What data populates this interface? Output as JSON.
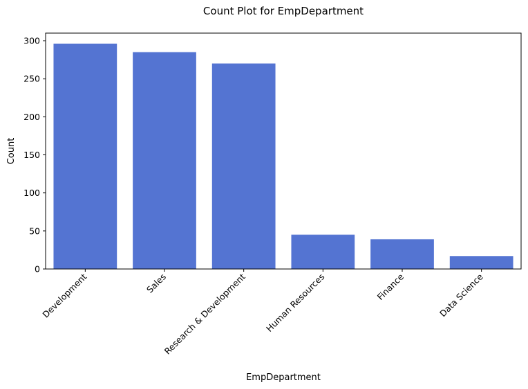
{
  "chart_data": {
    "type": "bar",
    "title": "Count Plot for EmpDepartment",
    "xlabel": "EmpDepartment",
    "ylabel": "Count",
    "categories": [
      "Development",
      "Sales",
      "Research & Development",
      "Human Resources",
      "Finance",
      "Data Science"
    ],
    "values": [
      296,
      285,
      270,
      45,
      39,
      17
    ],
    "ylim": [
      0,
      310
    ],
    "yticks": [
      0,
      50,
      100,
      150,
      200,
      250,
      300
    ],
    "bar_color": "#5474d2",
    "grid": false,
    "legend": "none"
  }
}
